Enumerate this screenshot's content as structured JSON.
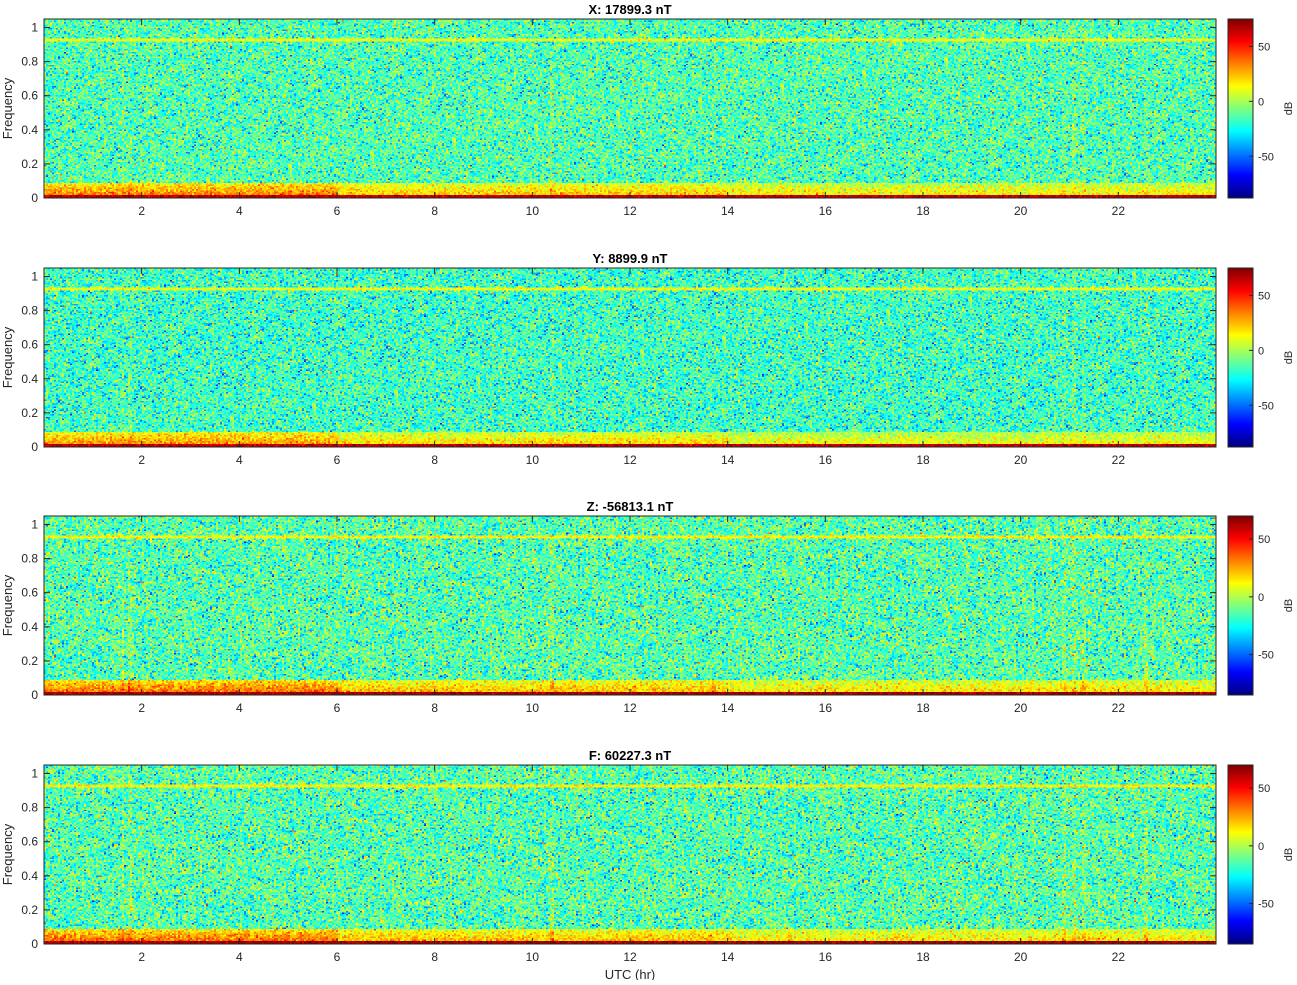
{
  "figure": {
    "xlabel": "UTC (hr)",
    "ylabel": "Frequency",
    "colorbar_label": "dB"
  },
  "chart_data": [
    {
      "type": "heatmap",
      "title": "X: 17899.3 nT",
      "xlabel": "",
      "ylabel": "Frequency",
      "xlim": [
        0,
        24
      ],
      "ylim": [
        0,
        1.05
      ],
      "xticks": [
        2,
        4,
        6,
        8,
        10,
        12,
        14,
        16,
        18,
        20,
        22
      ],
      "yticks": [
        0,
        0.2,
        0.4,
        0.6,
        0.8,
        1
      ],
      "colorbar": {
        "label": "dB",
        "ticks": [
          50,
          0,
          -50
        ],
        "range": [
          -88,
          75
        ],
        "colormap": "jet"
      },
      "features": {
        "line_frequency": 0.93,
        "low_freq_band_top": 0.08,
        "noise_floor_db": -15
      }
    },
    {
      "type": "heatmap",
      "title": "Y: 8899.9 nT",
      "xlabel": "",
      "ylabel": "Frequency",
      "xlim": [
        0,
        24
      ],
      "ylim": [
        0,
        1.05
      ],
      "xticks": [
        2,
        4,
        6,
        8,
        10,
        12,
        14,
        16,
        18,
        20,
        22
      ],
      "yticks": [
        0,
        0.2,
        0.4,
        0.6,
        0.8,
        1
      ],
      "colorbar": {
        "label": "dB",
        "ticks": [
          50,
          0,
          -50
        ],
        "range": [
          -88,
          75
        ],
        "colormap": "jet"
      },
      "features": {
        "line_frequency": 0.93,
        "low_freq_band_top": 0.08,
        "noise_floor_db": -18
      }
    },
    {
      "type": "heatmap",
      "title": "Z: -56813.1 nT",
      "xlabel": "",
      "ylabel": "Frequency",
      "xlim": [
        0,
        24
      ],
      "ylim": [
        0,
        1.05
      ],
      "xticks": [
        2,
        4,
        6,
        8,
        10,
        12,
        14,
        16,
        18,
        20,
        22
      ],
      "yticks": [
        0,
        0.2,
        0.4,
        0.6,
        0.8,
        1
      ],
      "colorbar": {
        "label": "dB",
        "ticks": [
          50,
          0,
          -50
        ],
        "range": [
          -85,
          70
        ],
        "colormap": "jet"
      },
      "features": {
        "line_frequency": 0.93,
        "low_freq_band_top": 0.08,
        "noise_floor_db": -15
      }
    },
    {
      "type": "heatmap",
      "title": "F: 60227.3 nT",
      "xlabel": "UTC (hr)",
      "ylabel": "Frequency",
      "xlim": [
        0,
        24
      ],
      "ylim": [
        0,
        1.05
      ],
      "xticks": [
        2,
        4,
        6,
        8,
        10,
        12,
        14,
        16,
        18,
        20,
        22
      ],
      "yticks": [
        0,
        0.2,
        0.4,
        0.6,
        0.8,
        1
      ],
      "colorbar": {
        "label": "dB",
        "ticks": [
          50,
          0,
          -50
        ],
        "range": [
          -85,
          70
        ],
        "colormap": "jet"
      },
      "features": {
        "line_frequency": 0.93,
        "low_freq_band_top": 0.08,
        "noise_floor_db": -15
      }
    }
  ]
}
